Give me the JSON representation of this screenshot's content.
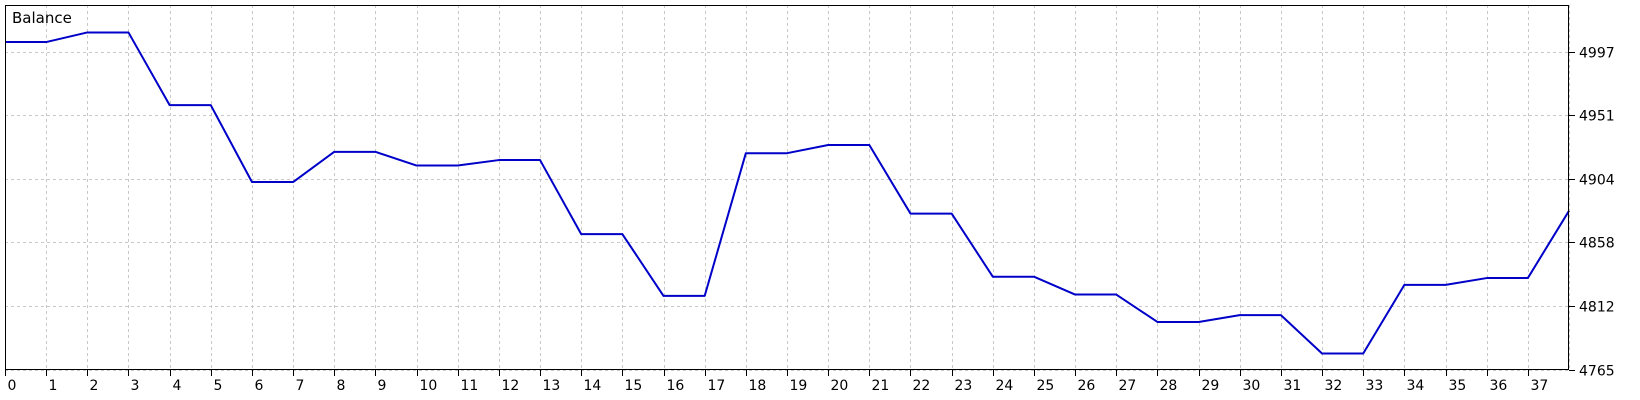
{
  "colors": {
    "background": "#ffffff",
    "frame": "#000000",
    "grid": "#c8c8c8",
    "series": "#0000c8",
    "text": "#000000"
  },
  "chart_data": {
    "type": "line",
    "title": "Balance",
    "xlabel": "",
    "ylabel": "",
    "x": [
      0,
      1,
      2,
      3,
      4,
      5,
      6,
      7,
      8,
      9,
      10,
      11,
      12,
      13,
      14,
      15,
      16,
      17,
      18,
      19,
      20,
      21,
      22,
      23,
      24,
      25,
      26,
      27,
      28,
      29,
      30,
      31,
      32,
      33,
      34,
      35,
      36,
      37,
      38
    ],
    "x_tick_labels": [
      "0",
      "1",
      "2",
      "3",
      "4",
      "5",
      "6",
      "7",
      "8",
      "9",
      "10",
      "11",
      "12",
      "13",
      "14",
      "15",
      "16",
      "17",
      "18",
      "19",
      "20",
      "21",
      "22",
      "23",
      "24",
      "25",
      "26",
      "27",
      "28",
      "29",
      "30",
      "31",
      "32",
      "33",
      "34",
      "35",
      "36",
      "37"
    ],
    "y_tick_values": [
      4765,
      4812,
      4858,
      4904,
      4951,
      4997
    ],
    "y_tick_labels": [
      "4765",
      "4812",
      "4858",
      "4904",
      "4951",
      "4997"
    ],
    "xlim": [
      0,
      38
    ],
    "ylim": [
      4765,
      5031
    ],
    "grid": true,
    "y_axis_position": "right",
    "series": [
      {
        "values": [
          5004,
          5004,
          5011,
          5011,
          4958,
          4958,
          4902,
          4902,
          4924,
          4924,
          4914,
          4914,
          4918,
          4918,
          4864,
          4864,
          4819,
          4819,
          4923,
          4923,
          4929,
          4929,
          4879,
          4879,
          4833,
          4833,
          4820,
          4820,
          4800,
          4800,
          4805,
          4805,
          4777,
          4777,
          4827,
          4827,
          4832,
          4832,
          4881
        ]
      }
    ]
  }
}
